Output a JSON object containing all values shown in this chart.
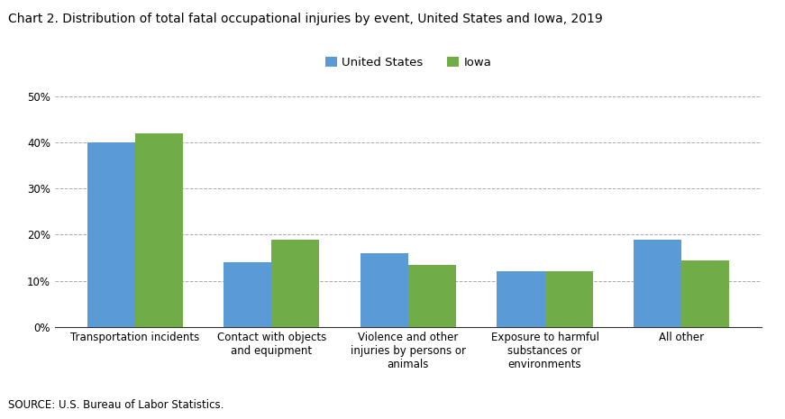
{
  "title": "Chart 2. Distribution of total fatal occupational injuries by event, United States and Iowa, 2019",
  "categories": [
    "Transportation incidents",
    "Contact with objects\nand equipment",
    "Violence and other\ninjuries by persons or\nanimals",
    "Exposure to harmful\nsubstances or\nenvironments",
    "All other"
  ],
  "us_values": [
    40.0,
    14.0,
    16.0,
    12.0,
    19.0
  ],
  "iowa_values": [
    42.0,
    19.0,
    13.5,
    12.0,
    14.5
  ],
  "us_color": "#5b9bd5",
  "iowa_color": "#70ad47",
  "us_label": "United States",
  "iowa_label": "Iowa",
  "ylim": [
    0,
    50
  ],
  "yticks": [
    0,
    10,
    20,
    30,
    40,
    50
  ],
  "source": "SOURCE: U.S. Bureau of Labor Statistics.",
  "bar_width": 0.35,
  "title_fontsize": 10,
  "axis_fontsize": 8.5,
  "legend_fontsize": 9.5,
  "source_fontsize": 8.5
}
